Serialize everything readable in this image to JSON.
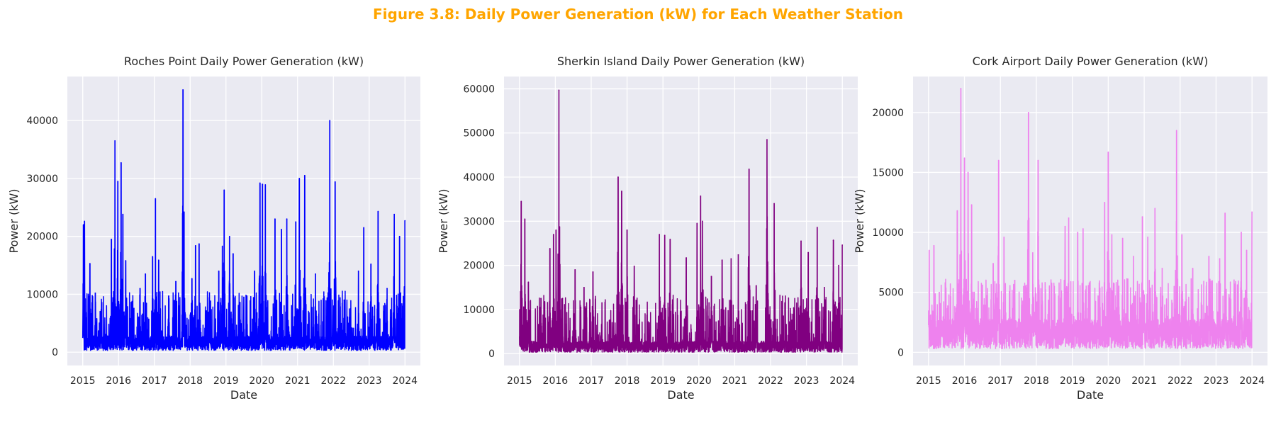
{
  "figure": {
    "title": "Figure 3.8: Daily Power Generation (kW) for Each Weather Station",
    "title_color": "#FFA500"
  },
  "style": {
    "plot_background": "#EAEAF2",
    "grid_color": "#FFFFFF",
    "text_color": "#262626"
  },
  "chart_data": [
    {
      "type": "line",
      "title": "Roches Point Daily Power Generation (kW)",
      "xlabel": "Date",
      "ylabel": "Power (kW)",
      "xlim": [
        2014.57,
        2024.43
      ],
      "ylim": [
        -2300,
        47600
      ],
      "xticks": [
        2015,
        2016,
        2017,
        2018,
        2019,
        2020,
        2021,
        2022,
        2023,
        2024
      ],
      "yticks": [
        0,
        10000,
        20000,
        30000,
        40000
      ],
      "grid": true,
      "series": [
        {
          "color": "#0000FF",
          "peaks": [
            [
              2015.02,
              22000
            ],
            [
              2015.05,
              22600
            ],
            [
              2015.2,
              15300
            ],
            [
              2015.35,
              10200
            ],
            [
              2015.8,
              19500
            ],
            [
              2015.9,
              36500
            ],
            [
              2015.98,
              29500
            ],
            [
              2016.07,
              32700
            ],
            [
              2016.12,
              23800
            ],
            [
              2016.2,
              15800
            ],
            [
              2016.6,
              11000
            ],
            [
              2016.75,
              13500
            ],
            [
              2016.95,
              16500
            ],
            [
              2017.03,
              26500
            ],
            [
              2017.12,
              15900
            ],
            [
              2017.4,
              9700
            ],
            [
              2017.6,
              12200
            ],
            [
              2017.8,
              45300
            ],
            [
              2017.83,
              24200
            ],
            [
              2018.05,
              12700
            ],
            [
              2018.15,
              18400
            ],
            [
              2018.25,
              18700
            ],
            [
              2018.8,
              14000
            ],
            [
              2018.9,
              18300
            ],
            [
              2018.95,
              28000
            ],
            [
              2019.1,
              20000
            ],
            [
              2019.2,
              17000
            ],
            [
              2019.5,
              9500
            ],
            [
              2019.8,
              14000
            ],
            [
              2019.95,
              29200
            ],
            [
              2020.02,
              29000
            ],
            [
              2020.1,
              28900
            ],
            [
              2020.37,
              23000
            ],
            [
              2020.55,
              21200
            ],
            [
              2020.7,
              23000
            ],
            [
              2020.95,
              22500
            ],
            [
              2021.05,
              30000
            ],
            [
              2021.2,
              30500
            ],
            [
              2021.5,
              13500
            ],
            [
              2021.9,
              40000
            ],
            [
              2022.05,
              29400
            ],
            [
              2022.3,
              9000
            ],
            [
              2022.7,
              14000
            ],
            [
              2022.85,
              21500
            ],
            [
              2023.05,
              15200
            ],
            [
              2023.25,
              24300
            ],
            [
              2023.5,
              11000
            ],
            [
              2023.7,
              23800
            ],
            [
              2023.85,
              20000
            ],
            [
              2024.0,
              22700
            ]
          ]
        }
      ]
    },
    {
      "type": "line",
      "title": "Sherkin Island Daily Power Generation (kW)",
      "xlabel": "Date",
      "ylabel": "Power (kW)",
      "xlim": [
        2014.57,
        2024.43
      ],
      "ylim": [
        -2700,
        62800
      ],
      "xticks": [
        2015,
        2016,
        2017,
        2018,
        2019,
        2020,
        2021,
        2022,
        2023,
        2024
      ],
      "yticks": [
        0,
        10000,
        20000,
        30000,
        40000,
        50000,
        60000
      ],
      "grid": true,
      "series": [
        {
          "color": "#800080",
          "peaks": [
            [
              2015.05,
              34500
            ],
            [
              2015.15,
              30500
            ],
            [
              2015.25,
              16200
            ],
            [
              2015.6,
              12500
            ],
            [
              2015.85,
              23800
            ],
            [
              2015.95,
              27000
            ],
            [
              2016.02,
              28000
            ],
            [
              2016.1,
              59700
            ],
            [
              2016.2,
              12500
            ],
            [
              2016.55,
              19000
            ],
            [
              2016.8,
              15000
            ],
            [
              2017.05,
              18500
            ],
            [
              2017.3,
              11500
            ],
            [
              2017.75,
              40000
            ],
            [
              2017.85,
              36800
            ],
            [
              2018.0,
              28000
            ],
            [
              2018.2,
              19800
            ],
            [
              2018.9,
              27000
            ],
            [
              2019.05,
              26800
            ],
            [
              2019.2,
              25900
            ],
            [
              2019.65,
              21700
            ],
            [
              2019.95,
              29500
            ],
            [
              2020.05,
              35700
            ],
            [
              2020.1,
              30000
            ],
            [
              2020.35,
              17500
            ],
            [
              2020.65,
              21200
            ],
            [
              2020.9,
              21500
            ],
            [
              2021.1,
              22400
            ],
            [
              2021.4,
              41800
            ],
            [
              2021.6,
              15400
            ],
            [
              2021.9,
              48500
            ],
            [
              2022.1,
              34000
            ],
            [
              2022.4,
              11500
            ],
            [
              2022.85,
              25500
            ],
            [
              2023.05,
              22900
            ],
            [
              2023.3,
              28600
            ],
            [
              2023.5,
              15000
            ],
            [
              2023.75,
              25700
            ],
            [
              2023.9,
              20000
            ],
            [
              2024.0,
              24600
            ]
          ]
        }
      ]
    },
    {
      "type": "line",
      "title": "Cork Airport Daily Power Generation (kW)",
      "xlabel": "Date",
      "ylabel": "Power (kW)",
      "xlim": [
        2014.57,
        2024.43
      ],
      "ylim": [
        -1100,
        23000
      ],
      "xticks": [
        2015,
        2016,
        2017,
        2018,
        2019,
        2020,
        2021,
        2022,
        2023,
        2024
      ],
      "yticks": [
        0,
        5000,
        10000,
        15000,
        20000
      ],
      "grid": true,
      "series": [
        {
          "color": "#EE82EE",
          "peaks": [
            [
              2015.02,
              8500
            ],
            [
              2015.15,
              8900
            ],
            [
              2015.3,
              5000
            ],
            [
              2015.8,
              11800
            ],
            [
              2015.9,
              22000
            ],
            [
              2016.0,
              16200
            ],
            [
              2016.1,
              15000
            ],
            [
              2016.2,
              12300
            ],
            [
              2016.5,
              5600
            ],
            [
              2016.8,
              7400
            ],
            [
              2016.95,
              16000
            ],
            [
              2017.1,
              9600
            ],
            [
              2017.4,
              6000
            ],
            [
              2017.78,
              20000
            ],
            [
              2017.9,
              8300
            ],
            [
              2018.05,
              16000
            ],
            [
              2018.5,
              5500
            ],
            [
              2018.8,
              10500
            ],
            [
              2018.9,
              11200
            ],
            [
              2019.15,
              10000
            ],
            [
              2019.3,
              10300
            ],
            [
              2019.9,
              12500
            ],
            [
              2020.0,
              16700
            ],
            [
              2020.1,
              9800
            ],
            [
              2020.4,
              9500
            ],
            [
              2020.7,
              8000
            ],
            [
              2020.95,
              11300
            ],
            [
              2021.1,
              9600
            ],
            [
              2021.3,
              12000
            ],
            [
              2021.5,
              7000
            ],
            [
              2021.9,
              18500
            ],
            [
              2022.05,
              9800
            ],
            [
              2022.35,
              7000
            ],
            [
              2022.8,
              8000
            ],
            [
              2023.1,
              7800
            ],
            [
              2023.25,
              11600
            ],
            [
              2023.5,
              6000
            ],
            [
              2023.7,
              10000
            ],
            [
              2023.85,
              8500
            ],
            [
              2024.0,
              11700
            ]
          ]
        }
      ]
    }
  ]
}
